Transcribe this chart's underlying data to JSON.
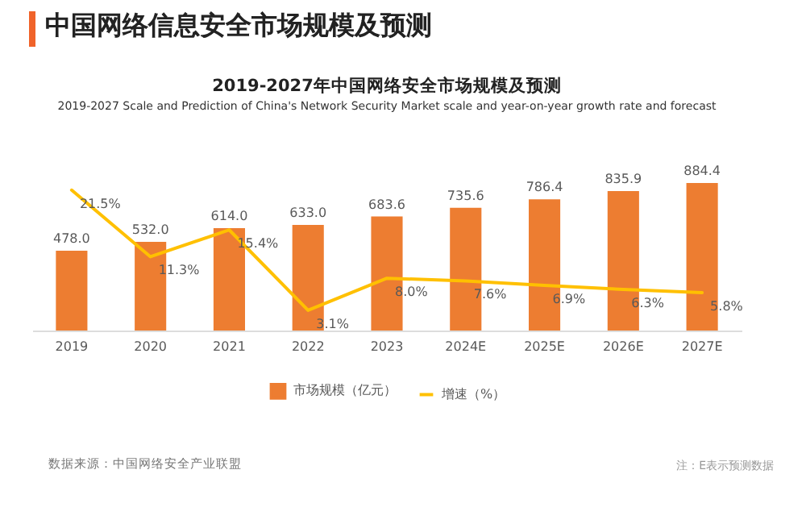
{
  "chart_data": {
    "type": "bar",
    "title": "中国网络信息安全市场规模及预测",
    "subtitle": "2019-2027年中国网络安全市场规模及预测",
    "annotations": [
      "2019-2027 Scale and Prediction of China's Network Security Market  scale and year-on-year growth rate and forecast",
      "数据来源：中国网络安全产业联盟",
      "注：E表示预测数据"
    ],
    "categories": [
      "2019",
      "2020",
      "2021",
      "2022",
      "2023",
      "2024E",
      "2025E",
      "2026E",
      "2027E"
    ],
    "series": [
      {
        "name": "市场规模（亿元）",
        "color": "#ed7d31",
        "values": [
          478.0,
          532.0,
          614.0,
          633.0,
          683.6,
          735.6,
          786.4,
          835.9,
          884.4
        ],
        "value_labels": [
          "478.0",
          "532.0",
          "614.0",
          "633.0",
          "683.6",
          "735.6",
          "786.4",
          "835.9",
          "884.4"
        ]
      },
      {
        "name": "增速（%）",
        "type": "line",
        "axis": "y2",
        "color": "#ffc000",
        "values": [
          21.5,
          11.3,
          15.4,
          3.1,
          8.0,
          7.6,
          6.9,
          6.3,
          5.8
        ],
        "value_labels": [
          "21.5%",
          "11.3%",
          "15.4%",
          "3.1%",
          "8.0%",
          "7.6%",
          "6.9%",
          "6.3%",
          "5.8%"
        ]
      }
    ],
    "legend": "bottom",
    "grid": false,
    "tick_labels": "x"
  }
}
